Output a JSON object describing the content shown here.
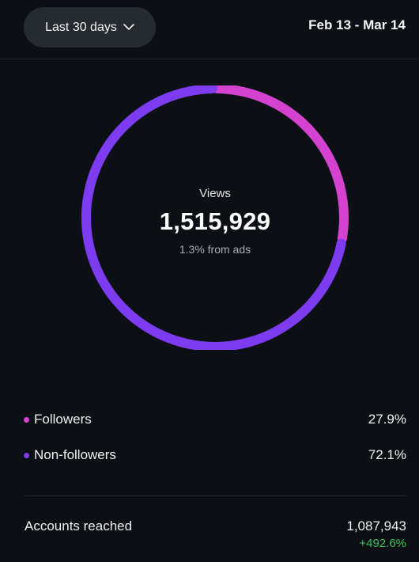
{
  "header": {
    "range_label": "Last 30 days",
    "date_range": "Feb 13 - Mar 14"
  },
  "summary": {
    "label": "Views",
    "value": "1,515,929",
    "sub": "1.3% from ads"
  },
  "legend": [
    {
      "label": "Followers",
      "percent": "27.9%",
      "color": "#d542d0"
    },
    {
      "label": "Non-followers",
      "percent": "72.1%",
      "color": "#7d3cf0"
    }
  ],
  "chart_data": {
    "type": "pie",
    "categories": [
      "Followers",
      "Non-followers"
    ],
    "values": [
      27.9,
      72.1
    ],
    "colors": [
      "#d542d0",
      "#7d3cf0"
    ],
    "style": "donut"
  },
  "footer": {
    "label": "Accounts reached",
    "value": "1,087,943",
    "change": "+492.6%"
  }
}
